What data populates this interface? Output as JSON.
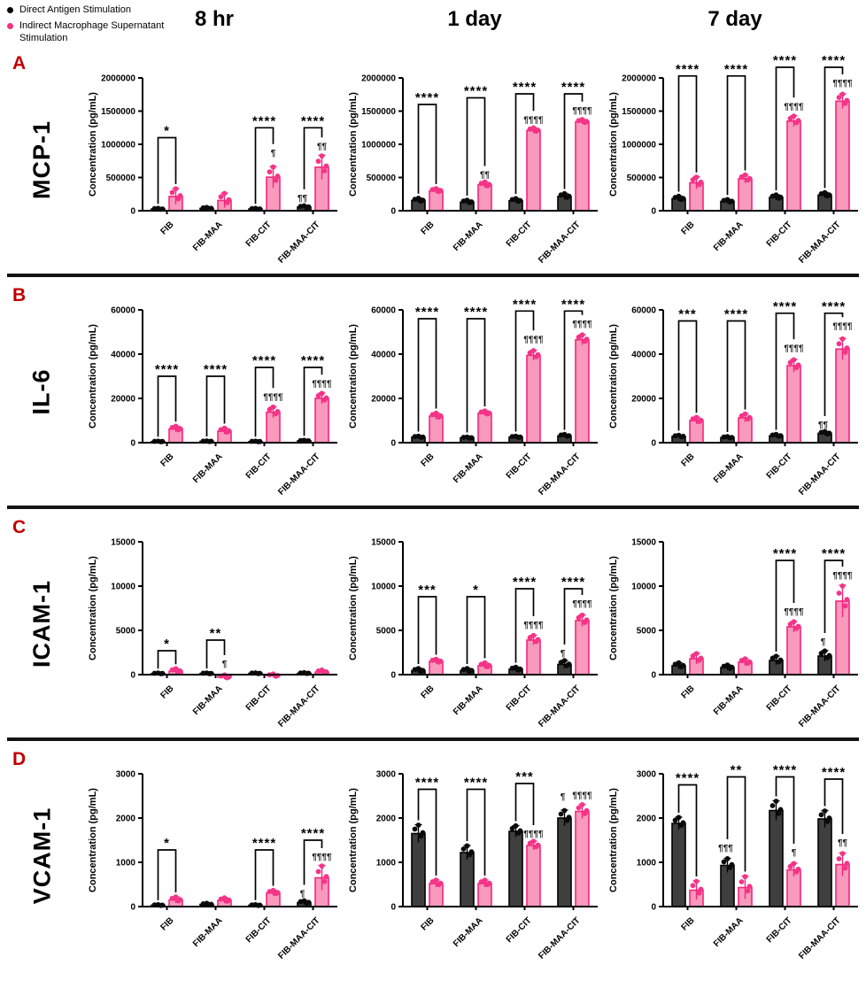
{
  "legend": {
    "items": [
      {
        "label": "Direct Antigen Stimulation",
        "color": "#000000"
      },
      {
        "label": "Indirect Macrophage Supernatant Stimulation",
        "color": "#F4307F"
      }
    ]
  },
  "columns": [
    "8 hr",
    "1 day",
    "7 day"
  ],
  "rows": [
    {
      "panel": "A",
      "title": "MCP-1"
    },
    {
      "panel": "B",
      "title": "IL-6"
    },
    {
      "panel": "C",
      "title": "ICAM-1"
    },
    {
      "panel": "D",
      "title": "VCAM-1"
    }
  ],
  "colors": {
    "panel_letter": "#C00000",
    "direct": {
      "fill": "#3f3f3f",
      "edge": "#000000",
      "dot": "#0a0a0a"
    },
    "indirect": {
      "fill": "#F999BC",
      "edge": "#F4257E",
      "dot": "#F43487"
    },
    "axis": "#000000"
  },
  "chart_data": [
    {
      "type": "bar",
      "panel": "A",
      "timepoint": "8 hr",
      "title": "MCP-1 8 hr",
      "ylabel": "Concentration (pg/mL)",
      "ymax": 2000000,
      "yticks": [
        0,
        500000,
        1000000,
        1500000,
        2000000
      ],
      "categories": [
        "FIB",
        "FIB-MAA",
        "FIB-CIT",
        "FIB-MAA-CIT"
      ],
      "series": [
        {
          "name": "direct",
          "values": [
            25000,
            35000,
            25000,
            55000
          ],
          "errors": [
            12000,
            15000,
            12000,
            20000
          ]
        },
        {
          "name": "indirect",
          "values": [
            215000,
            155000,
            505000,
            655000
          ],
          "errors": [
            120000,
            110000,
            160000,
            180000
          ]
        }
      ],
      "brackets": [
        {
          "cat": 0,
          "stars": "*",
          "top": 1100000
        },
        {
          "cat": 2,
          "stars": "****",
          "top": 1250000
        },
        {
          "cat": 3,
          "stars": "****",
          "top": 1250000
        }
      ],
      "pilcrows": [
        {
          "cat": 2,
          "series": 1,
          "text": "¶",
          "y": 830000
        },
        {
          "cat": 3,
          "series": 1,
          "text": "¶¶",
          "y": 930000
        },
        {
          "cat": 3,
          "series": 0,
          "text": "¶¶",
          "y": 150000
        }
      ]
    },
    {
      "type": "bar",
      "panel": "A",
      "timepoint": "1 day",
      "title": "MCP-1 1 day",
      "ylabel": "Concentration (pg/mL)",
      "ymax": 2000000,
      "yticks": [
        0,
        500000,
        1000000,
        1500000,
        2000000
      ],
      "categories": [
        "FIB",
        "FIB-MAA",
        "FIB-CIT",
        "FIB-MAA-CIT"
      ],
      "series": [
        {
          "name": "direct",
          "values": [
            155000,
            130000,
            150000,
            215000
          ],
          "errors": [
            35000,
            30000,
            35000,
            45000
          ]
        },
        {
          "name": "indirect",
          "values": [
            300000,
            390000,
            1210000,
            1340000
          ],
          "errors": [
            35000,
            45000,
            40000,
            35000
          ]
        }
      ],
      "brackets": [
        {
          "cat": 0,
          "stars": "****",
          "top": 1600000
        },
        {
          "cat": 1,
          "stars": "****",
          "top": 1700000
        },
        {
          "cat": 2,
          "stars": "****",
          "top": 1760000
        },
        {
          "cat": 3,
          "stars": "****",
          "top": 1760000
        }
      ],
      "pilcrows": [
        {
          "cat": 1,
          "series": 1,
          "text": "¶¶",
          "y": 500000
        },
        {
          "cat": 2,
          "series": 1,
          "text": "¶¶¶¶",
          "y": 1330000
        },
        {
          "cat": 3,
          "series": 1,
          "text": "¶¶¶¶",
          "y": 1470000
        }
      ]
    },
    {
      "type": "bar",
      "panel": "A",
      "timepoint": "7 day",
      "title": "MCP-1 7 day",
      "ylabel": "Concentration (pg/mL)",
      "ymax": 2000000,
      "yticks": [
        0,
        500000,
        1000000,
        1500000,
        2000000
      ],
      "categories": [
        "FIB",
        "FIB-MAA",
        "FIB-CIT",
        "FIB-MAA-CIT"
      ],
      "series": [
        {
          "name": "direct",
          "values": [
            180000,
            140000,
            200000,
            235000
          ],
          "errors": [
            40000,
            30000,
            40000,
            40000
          ]
        },
        {
          "name": "indirect",
          "values": [
            420000,
            480000,
            1350000,
            1650000
          ],
          "errors": [
            90000,
            60000,
            80000,
            110000
          ]
        }
      ],
      "brackets": [
        {
          "cat": 0,
          "stars": "****",
          "top": 2030000
        },
        {
          "cat": 1,
          "stars": "****",
          "top": 2030000
        },
        {
          "cat": 2,
          "stars": "****",
          "top": 2160000
        },
        {
          "cat": 3,
          "stars": "****",
          "top": 2160000
        }
      ],
      "pilcrows": [
        {
          "cat": 2,
          "series": 1,
          "text": "¶¶¶¶",
          "y": 1530000
        },
        {
          "cat": 3,
          "series": 1,
          "text": "¶¶¶¶",
          "y": 1880000
        }
      ]
    },
    {
      "type": "bar",
      "panel": "B",
      "timepoint": "8 hr",
      "title": "IL-6 8 hr",
      "ylabel": "Concentration (pg/mL)",
      "ymax": 60000,
      "yticks": [
        0,
        20000,
        40000,
        60000
      ],
      "categories": [
        "FIB",
        "FIB-MAA",
        "FIB-CIT",
        "FIB-MAA-CIT"
      ],
      "series": [
        {
          "name": "direct",
          "values": [
            500,
            600,
            500,
            800
          ],
          "errors": [
            200,
            200,
            200,
            300
          ]
        },
        {
          "name": "indirect",
          "values": [
            6200,
            5200,
            13800,
            20000
          ],
          "errors": [
            1300,
            1400,
            2400,
            2400
          ]
        }
      ],
      "brackets": [
        {
          "cat": 0,
          "stars": "****",
          "top": 30000
        },
        {
          "cat": 1,
          "stars": "****",
          "top": 30000
        },
        {
          "cat": 2,
          "stars": "****",
          "top": 34000
        },
        {
          "cat": 3,
          "stars": "****",
          "top": 34000
        }
      ],
      "pilcrows": [
        {
          "cat": 2,
          "series": 1,
          "text": "¶¶¶¶",
          "y": 19500
        },
        {
          "cat": 3,
          "series": 1,
          "text": "¶¶¶¶",
          "y": 25500
        }
      ]
    },
    {
      "type": "bar",
      "panel": "B",
      "timepoint": "1 day",
      "title": "IL-6 1 day",
      "ylabel": "Concentration (pg/mL)",
      "ymax": 60000,
      "yticks": [
        0,
        20000,
        40000,
        60000
      ],
      "categories": [
        "FIB",
        "FIB-MAA",
        "FIB-CIT",
        "FIB-MAA-CIT"
      ],
      "series": [
        {
          "name": "direct",
          "values": [
            2500,
            2200,
            2500,
            3100
          ],
          "errors": [
            500,
            400,
            500,
            700
          ]
        },
        {
          "name": "indirect",
          "values": [
            12000,
            13300,
            39500,
            46500
          ],
          "errors": [
            1400,
            1100,
            2200,
            2300
          ]
        }
      ],
      "brackets": [
        {
          "cat": 0,
          "stars": "****",
          "top": 56000
        },
        {
          "cat": 1,
          "stars": "****",
          "top": 56000
        },
        {
          "cat": 2,
          "stars": "****",
          "top": 59500
        },
        {
          "cat": 3,
          "stars": "****",
          "top": 59500
        }
      ],
      "pilcrows": [
        {
          "cat": 2,
          "series": 1,
          "text": "¶¶¶¶",
          "y": 45500
        },
        {
          "cat": 3,
          "series": 1,
          "text": "¶¶¶¶",
          "y": 52500
        }
      ]
    },
    {
      "type": "bar",
      "panel": "B",
      "timepoint": "7 day",
      "title": "IL-6 7 day",
      "ylabel": "Concentration (pg/mL)",
      "ymax": 60000,
      "yticks": [
        0,
        20000,
        40000,
        60000
      ],
      "categories": [
        "FIB",
        "FIB-MAA",
        "FIB-CIT",
        "FIB-MAA-CIT"
      ],
      "series": [
        {
          "name": "direct",
          "values": [
            2800,
            2300,
            3100,
            4200
          ],
          "errors": [
            600,
            500,
            700,
            900
          ]
        },
        {
          "name": "indirect",
          "values": [
            10000,
            11200,
            34800,
            42300
          ],
          "errors": [
            1500,
            1800,
            2800,
            4800
          ]
        }
      ],
      "brackets": [
        {
          "cat": 0,
          "stars": "***",
          "top": 55000
        },
        {
          "cat": 1,
          "stars": "****",
          "top": 55000
        },
        {
          "cat": 2,
          "stars": "****",
          "top": 58500
        },
        {
          "cat": 3,
          "stars": "****",
          "top": 58500
        }
      ],
      "pilcrows": [
        {
          "cat": 2,
          "series": 1,
          "text": "¶¶¶¶",
          "y": 41500
        },
        {
          "cat": 3,
          "series": 1,
          "text": "¶¶¶¶",
          "y": 51500
        },
        {
          "cat": 3,
          "series": 0,
          "text": "¶¶",
          "y": 6800
        }
      ]
    },
    {
      "type": "bar",
      "panel": "C",
      "timepoint": "8 hr",
      "title": "ICAM-1 8 hr",
      "ylabel": "Concentration (pg/mL)",
      "ymax": 15000,
      "yticks": [
        0,
        5000,
        10000,
        15000
      ],
      "categories": [
        "FIB",
        "FIB-MAA",
        "FIB-CIT",
        "FIB-MAA-CIT"
      ],
      "series": [
        {
          "name": "direct",
          "values": [
            120,
            130,
            140,
            150
          ],
          "errors": [
            60,
            60,
            60,
            70
          ]
        },
        {
          "name": "indirect",
          "values": [
            380,
            -280,
            -120,
            280
          ],
          "errors": [
            300,
            250,
            200,
            250
          ]
        }
      ],
      "brackets": [
        {
          "cat": 0,
          "stars": "*",
          "top": 2700
        },
        {
          "cat": 1,
          "stars": "**",
          "top": 3900
        }
      ],
      "pilcrows": [
        {
          "cat": 1,
          "series": 1,
          "text": "¶",
          "y": 900
        }
      ]
    },
    {
      "type": "bar",
      "panel": "C",
      "timepoint": "1 day",
      "title": "ICAM-1 1 day",
      "ylabel": "Concentration (pg/mL)",
      "ymax": 15000,
      "yticks": [
        0,
        5000,
        10000,
        15000
      ],
      "categories": [
        "FIB",
        "FIB-MAA",
        "FIB-CIT",
        "FIB-MAA-CIT"
      ],
      "series": [
        {
          "name": "direct",
          "values": [
            450,
            450,
            600,
            1150
          ],
          "errors": [
            250,
            250,
            250,
            450
          ]
        },
        {
          "name": "indirect",
          "values": [
            1500,
            1000,
            3900,
            6100
          ],
          "errors": [
            250,
            350,
            550,
            650
          ]
        }
      ],
      "brackets": [
        {
          "cat": 0,
          "stars": "***",
          "top": 8800
        },
        {
          "cat": 1,
          "stars": "*",
          "top": 8800
        },
        {
          "cat": 2,
          "stars": "****",
          "top": 9700
        },
        {
          "cat": 3,
          "stars": "****",
          "top": 9700
        }
      ],
      "pilcrows": [
        {
          "cat": 2,
          "series": 1,
          "text": "¶¶¶¶",
          "y": 5300
        },
        {
          "cat": 3,
          "series": 1,
          "text": "¶¶¶¶",
          "y": 7700
        },
        {
          "cat": 3,
          "series": 0,
          "text": "¶",
          "y": 2100
        }
      ]
    },
    {
      "type": "bar",
      "panel": "C",
      "timepoint": "7 day",
      "title": "ICAM-1 7 day",
      "ylabel": "Concentration (pg/mL)",
      "ymax": 15000,
      "yticks": [
        0,
        5000,
        10000,
        15000
      ],
      "categories": [
        "FIB",
        "FIB-MAA",
        "FIB-CIT",
        "FIB-MAA-CIT"
      ],
      "series": [
        {
          "name": "direct",
          "values": [
            1000,
            800,
            1600,
            2100
          ],
          "errors": [
            350,
            300,
            500,
            600
          ]
        },
        {
          "name": "indirect",
          "values": [
            1800,
            1400,
            5400,
            8300
          ],
          "errors": [
            600,
            400,
            600,
            1800
          ]
        }
      ],
      "brackets": [
        {
          "cat": 2,
          "stars": "****",
          "top": 12900
        },
        {
          "cat": 3,
          "stars": "****",
          "top": 12900
        }
      ],
      "pilcrows": [
        {
          "cat": 2,
          "series": 1,
          "text": "¶¶¶¶",
          "y": 6800
        },
        {
          "cat": 3,
          "series": 1,
          "text": "¶¶¶¶",
          "y": 10900
        },
        {
          "cat": 3,
          "series": 0,
          "text": "¶",
          "y": 3400
        }
      ]
    },
    {
      "type": "bar",
      "panel": "D",
      "timepoint": "8 hr",
      "title": "VCAM-1 8 hr",
      "ylabel": "Concentration (pg/mL)",
      "ymax": 3000,
      "yticks": [
        0,
        1000,
        2000,
        3000
      ],
      "categories": [
        "FIB",
        "FIB-MAA",
        "FIB-CIT",
        "FIB-MAA-CIT"
      ],
      "series": [
        {
          "name": "direct",
          "values": [
            30,
            50,
            30,
            90
          ],
          "errors": [
            15,
            25,
            15,
            45
          ]
        },
        {
          "name": "indirect",
          "values": [
            150,
            140,
            310,
            650
          ],
          "errors": [
            70,
            60,
            60,
            280
          ]
        }
      ],
      "brackets": [
        {
          "cat": 0,
          "stars": "*",
          "top": 1280
        },
        {
          "cat": 2,
          "stars": "****",
          "top": 1280
        },
        {
          "cat": 3,
          "stars": "****",
          "top": 1500
        }
      ],
      "pilcrows": [
        {
          "cat": 3,
          "series": 1,
          "text": "¶¶¶¶",
          "y": 1060
        },
        {
          "cat": 3,
          "series": 0,
          "text": "¶",
          "y": 230
        }
      ]
    },
    {
      "type": "bar",
      "panel": "D",
      "timepoint": "1 day",
      "title": "VCAM-1 1 day",
      "ylabel": "Concentration (pg/mL)",
      "ymax": 3000,
      "yticks": [
        0,
        1000,
        2000,
        3000
      ],
      "categories": [
        "FIB",
        "FIB-MAA",
        "FIB-CIT",
        "FIB-MAA-CIT"
      ],
      "series": [
        {
          "name": "direct",
          "values": [
            1650,
            1220,
            1700,
            2000
          ],
          "errors": [
            200,
            160,
            130,
            180
          ]
        },
        {
          "name": "indirect",
          "values": [
            520,
            520,
            1380,
            2150
          ],
          "errors": [
            80,
            80,
            100,
            160
          ]
        }
      ],
      "brackets": [
        {
          "cat": 0,
          "stars": "****",
          "top": 2650
        },
        {
          "cat": 1,
          "stars": "****",
          "top": 2650
        },
        {
          "cat": 2,
          "stars": "***",
          "top": 2780
        }
      ],
      "pilcrows": [
        {
          "cat": 2,
          "series": 1,
          "text": "¶¶¶¶",
          "y": 1580
        },
        {
          "cat": 3,
          "series": 0,
          "text": "¶",
          "y": 2420
        },
        {
          "cat": 3,
          "series": 1,
          "text": "¶¶¶¶",
          "y": 2450
        }
      ]
    },
    {
      "type": "bar",
      "panel": "D",
      "timepoint": "7 day",
      "title": "VCAM-1 7 day",
      "ylabel": "Concentration (pg/mL)",
      "ymax": 3000,
      "yticks": [
        0,
        1000,
        2000,
        3000
      ],
      "categories": [
        "FIB",
        "FIB-MAA",
        "FIB-CIT",
        "FIB-MAA-CIT"
      ],
      "series": [
        {
          "name": "direct",
          "values": [
            1880,
            930,
            2170,
            1980
          ],
          "errors": [
            140,
            160,
            220,
            190
          ]
        },
        {
          "name": "indirect",
          "values": [
            370,
            430,
            830,
            950
          ],
          "errors": [
            210,
            260,
            150,
            260
          ]
        }
      ],
      "brackets": [
        {
          "cat": 0,
          "stars": "****",
          "top": 2750
        },
        {
          "cat": 1,
          "stars": "**",
          "top": 2930
        },
        {
          "cat": 2,
          "stars": "****",
          "top": 2930
        },
        {
          "cat": 3,
          "stars": "****",
          "top": 2880
        }
      ],
      "pilcrows": [
        {
          "cat": 1,
          "series": 0,
          "text": "¶¶¶",
          "y": 1260
        },
        {
          "cat": 2,
          "series": 1,
          "text": "¶",
          "y": 1160
        },
        {
          "cat": 3,
          "series": 1,
          "text": "¶¶",
          "y": 1380
        }
      ]
    }
  ]
}
